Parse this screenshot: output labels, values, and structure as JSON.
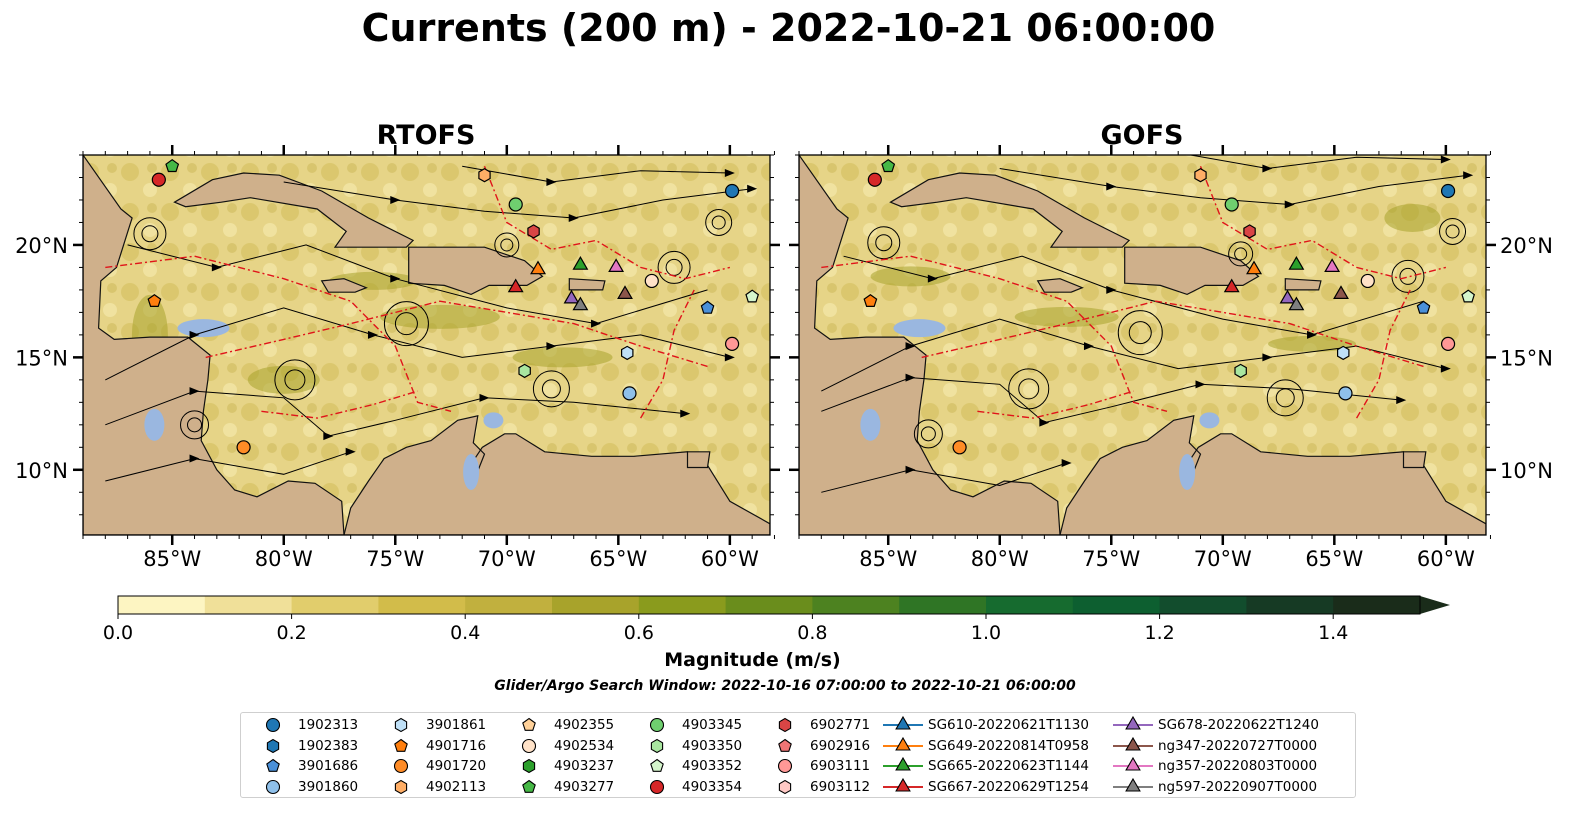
{
  "title": "Currents (200 m) - 2022-10-21 06:00:00",
  "panels": [
    {
      "title": "RTOFS"
    },
    {
      "title": "GOFS"
    }
  ],
  "axes": {
    "lat_labels": [
      "20°N",
      "15°N",
      "10°N"
    ],
    "lon_labels": [
      "85°W",
      "80°W",
      "75°W",
      "70°W",
      "65°W",
      "60°W"
    ]
  },
  "colors": {
    "land": "#cfb08b",
    "inland_water": "#9ab7e0",
    "borders": "#111111",
    "eez_lines": "#e0141a",
    "colormap": [
      "#fdf5c2",
      "#f0e099",
      "#e1cd6c",
      "#d2bc4a",
      "#c1b03e",
      "#a8a32b",
      "#8a9b1d",
      "#6a8d1c",
      "#4d8220",
      "#2f7525",
      "#166b2f",
      "#0d5f30",
      "#124d2d",
      "#163a24",
      "#1a2c1a"
    ]
  },
  "colorbar": {
    "label": "Magnitude (m/s)",
    "ticks": [
      "0.0",
      "0.2",
      "0.4",
      "0.6",
      "0.8",
      "1.0",
      "1.2",
      "1.4"
    ],
    "range": [
      0,
      1.5
    ],
    "extend": "max"
  },
  "search_window": "Glider/Argo Search Window: 2022-10-16 07:00:00 to 2022-10-21 06:00:00",
  "legend": [
    {
      "label": "1902313",
      "marker": "circle",
      "color": "#1f77b4"
    },
    {
      "label": "1902383",
      "marker": "hexagon",
      "color": "#1f77b4"
    },
    {
      "label": "3901686",
      "marker": "pentagon",
      "color": "#4a90d9"
    },
    {
      "label": "3901860",
      "marker": "circle",
      "color": "#8fc0ea"
    },
    {
      "label": "3901861",
      "marker": "hexagon",
      "color": "#bfe0f7"
    },
    {
      "label": "4901716",
      "marker": "pentagon",
      "color": "#ff7f0e"
    },
    {
      "label": "4901720",
      "marker": "circle",
      "color": "#ff8c26"
    },
    {
      "label": "4902113",
      "marker": "hexagon",
      "color": "#ffae66"
    },
    {
      "label": "4902355",
      "marker": "pentagon",
      "color": "#ffd199"
    },
    {
      "label": "4902534",
      "marker": "circle",
      "color": "#ffe2c8"
    },
    {
      "label": "4903237",
      "marker": "hexagon",
      "color": "#2ca02c"
    },
    {
      "label": "4903277",
      "marker": "pentagon",
      "color": "#46b846"
    },
    {
      "label": "4903345",
      "marker": "circle",
      "color": "#6fcf6f"
    },
    {
      "label": "4903350",
      "marker": "hexagon",
      "color": "#a9e6a0"
    },
    {
      "label": "4903352",
      "marker": "pentagon",
      "color": "#d5f5cc"
    },
    {
      "label": "4903354",
      "marker": "circle",
      "color": "#d62728"
    },
    {
      "label": "6902771",
      "marker": "hexagon",
      "color": "#d94545"
    },
    {
      "label": "6902916",
      "marker": "pentagon",
      "color": "#f07575"
    },
    {
      "label": "6903111",
      "marker": "circle",
      "color": "#ff9896"
    },
    {
      "label": "6903112",
      "marker": "hexagon",
      "color": "#ffc9c5"
    },
    {
      "label": "SG610-20220621T1130",
      "marker": "triangle",
      "color": "#1f77b4"
    },
    {
      "label": "SG649-20220814T0958",
      "marker": "triangle",
      "color": "#ff7f0e"
    },
    {
      "label": "SG665-20220623T1144",
      "marker": "triangle",
      "color": "#2ca02c"
    },
    {
      "label": "SG667-20220629T1254",
      "marker": "triangle",
      "color": "#d62728"
    },
    {
      "label": "SG678-20220622T1240",
      "marker": "triangle",
      "color": "#9467bd"
    },
    {
      "label": "ng347-20220727T0000",
      "marker": "triangle",
      "color": "#8c564b"
    },
    {
      "label": "ng357-20220803T0000",
      "marker": "triangle",
      "color": "#e377c2"
    },
    {
      "label": "ng597-20220907T0000",
      "marker": "triangle",
      "color": "#7f7f7f"
    }
  ],
  "floats": [
    {
      "id": "1902313",
      "lon": -59.9,
      "lat": 22.4
    },
    {
      "id": "3901686",
      "lon": -61.0,
      "lat": 17.2
    },
    {
      "id": "3901860",
      "lon": -64.5,
      "lat": 13.4
    },
    {
      "id": "3901861",
      "lon": -64.6,
      "lat": 15.2
    },
    {
      "id": "4901716",
      "lon": -85.8,
      "lat": 17.5
    },
    {
      "id": "4901720",
      "lon": -81.8,
      "lat": 11.0
    },
    {
      "id": "4902113",
      "lon": -71.0,
      "lat": 23.1
    },
    {
      "id": "4902534",
      "lon": -63.5,
      "lat": 18.4
    },
    {
      "id": "4903277",
      "lon": -85.0,
      "lat": 23.5
    },
    {
      "id": "4903345",
      "lon": -69.6,
      "lat": 21.8
    },
    {
      "id": "4903350",
      "lon": -69.2,
      "lat": 14.4
    },
    {
      "id": "4903352",
      "lon": -59.0,
      "lat": 17.7
    },
    {
      "id": "4903354",
      "lon": -85.6,
      "lat": 22.9
    },
    {
      "id": "6902771",
      "lon": -68.8,
      "lat": 20.6
    },
    {
      "id": "6903111",
      "lon": -59.9,
      "lat": 15.6
    }
  ],
  "gliders": [
    {
      "id": "SG649-20220814T0958",
      "lon": -68.6,
      "lat": 18.9
    },
    {
      "id": "SG665-20220623T1144",
      "lon": -66.7,
      "lat": 19.1
    },
    {
      "id": "SG667-20220629T1254",
      "lon": -69.6,
      "lat": 18.1
    },
    {
      "id": "SG678-20220622T1240",
      "lon": -67.1,
      "lat": 17.6
    },
    {
      "id": "ng347-20220727T0000",
      "lon": -64.7,
      "lat": 17.8
    },
    {
      "id": "ng357-20220803T0000",
      "lon": -65.1,
      "lat": 19.0
    },
    {
      "id": "ng597-20220907T0000",
      "lon": -66.7,
      "lat": 17.3
    }
  ]
}
